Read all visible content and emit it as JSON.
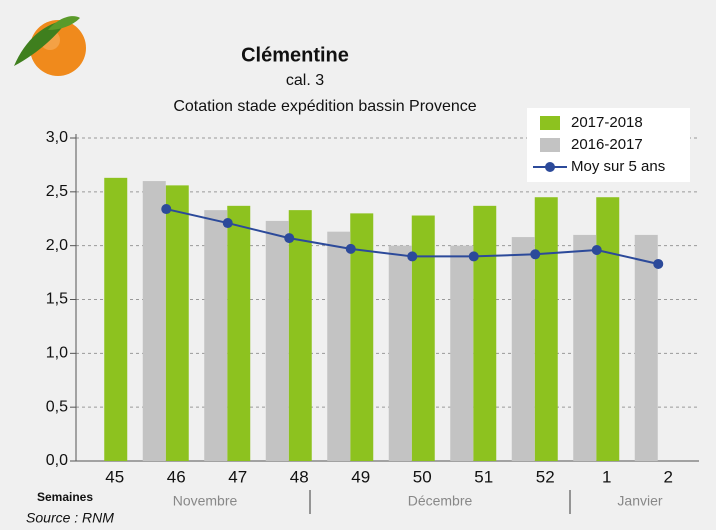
{
  "chart_data": {
    "type": "bar",
    "title": "Clémentine",
    "subtitle": "cal. 3",
    "description": "Cotation stade expédition bassin Provence",
    "x_label": "Semaines",
    "month_labels": [
      "Novembre",
      "Décembre",
      "Janvier"
    ],
    "source": "Source : RNM",
    "categories": [
      "45",
      "46",
      "47",
      "48",
      "49",
      "50",
      "51",
      "52",
      "1",
      "2"
    ],
    "series": [
      {
        "name": "2017-2018",
        "type": "bar",
        "color": "#8dc21f",
        "values": [
          2.63,
          2.56,
          2.37,
          2.33,
          2.3,
          2.28,
          2.37,
          2.45,
          2.45,
          null
        ]
      },
      {
        "name": "2016-2017",
        "type": "bar",
        "color": "#c3c3c3",
        "values": [
          null,
          2.6,
          2.33,
          2.23,
          2.13,
          2.0,
          2.0,
          2.08,
          2.1,
          2.1
        ]
      },
      {
        "name": "Moy sur 5 ans",
        "type": "line",
        "color": "#2c4a9a",
        "values": [
          null,
          2.34,
          2.21,
          2.07,
          1.97,
          1.9,
          1.9,
          1.92,
          1.96,
          1.83
        ]
      }
    ],
    "ylim": [
      0,
      3
    ],
    "yticks": [
      {
        "value": 0,
        "label": "0,0"
      },
      {
        "value": 0.5,
        "label": "0,5"
      },
      {
        "value": 1,
        "label": "1,0"
      },
      {
        "value": 1.5,
        "label": "1,5"
      },
      {
        "value": 2,
        "label": "2,0"
      },
      {
        "value": 2.5,
        "label": "2,5"
      },
      {
        "value": 3,
        "label": "3,0"
      }
    ],
    "grid": true,
    "legend": "top-right"
  }
}
